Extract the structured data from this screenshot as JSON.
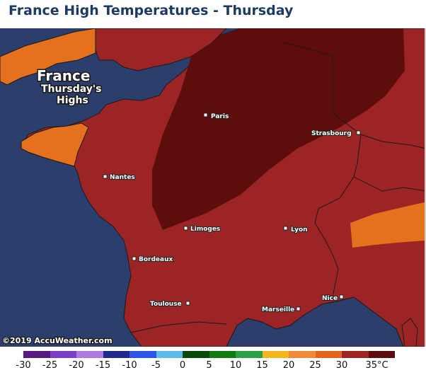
{
  "header": {
    "title": "France High Temperatures - Thursday"
  },
  "map": {
    "title_line1": "France",
    "title_line2": "Thursday's",
    "title_line3": "Highs",
    "copyright": "©2019 AccuWeather.com",
    "cities": [
      {
        "name": "Paris"
      },
      {
        "name": "Strasbourg"
      },
      {
        "name": "Nantes"
      },
      {
        "name": "Limoges"
      },
      {
        "name": "Lyon"
      },
      {
        "name": "Bordeaux"
      },
      {
        "name": "Nice"
      },
      {
        "name": "Toulouse"
      },
      {
        "name": "Marseille"
      }
    ]
  },
  "colors": {
    "ocean": "#2c3e6c",
    "band_25": "#e5701e",
    "band_30": "#9c2424",
    "band_35": "#5e0d0d"
  },
  "legend": {
    "swatches": [
      "#561a80",
      "#7a3fc4",
      "#b07ae0",
      "#1f2a8a",
      "#2f55e6",
      "#5cbbe8",
      "#0a4a0a",
      "#117a11",
      "#2fa04a",
      "#f5b51c",
      "#ee8a3a",
      "#e2651e",
      "#9c2424",
      "#5e0d0d"
    ],
    "labels": [
      "-30",
      "-25",
      "-20",
      "-15",
      "-10",
      "-5",
      "0",
      "5",
      "10",
      "15",
      "20",
      "25",
      "30",
      "35°C"
    ]
  }
}
